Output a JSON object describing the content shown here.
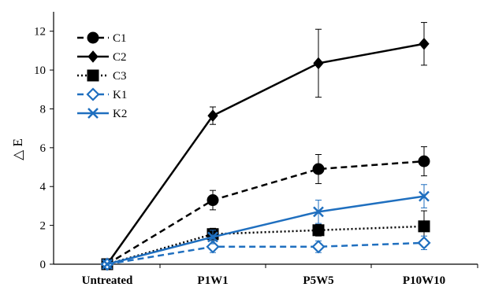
{
  "chart_data": {
    "type": "line",
    "title": "",
    "xlabel": "",
    "ylabel": "△ E",
    "categories": [
      "Untreated",
      "P1W1",
      "P5W5",
      "P10W10"
    ],
    "ylim": [
      0,
      13
    ],
    "yticks": [
      0,
      2,
      4,
      6,
      8,
      10,
      12
    ],
    "grid": false,
    "legend": "top-left",
    "series": [
      {
        "name": "C1",
        "color": "#000000",
        "dash": "dashed",
        "marker": "circle-filled",
        "values": [
          0,
          3.3,
          4.9,
          5.3
        ],
        "errors": [
          0,
          0.5,
          0.75,
          0.75
        ]
      },
      {
        "name": "C2",
        "color": "#000000",
        "dash": "solid",
        "marker": "diamond-filled",
        "values": [
          0,
          7.65,
          10.35,
          11.35
        ],
        "errors": [
          0,
          0.45,
          1.75,
          1.1
        ]
      },
      {
        "name": "C3",
        "color": "#000000",
        "dash": "dotted",
        "marker": "square-filled",
        "values": [
          0,
          1.55,
          1.75,
          1.95
        ],
        "errors": [
          0,
          0.3,
          0.3,
          0.8
        ]
      },
      {
        "name": "K1",
        "color": "#1f6fbf",
        "dash": "dashed",
        "marker": "diamond-open",
        "values": [
          0,
          0.9,
          0.9,
          1.1
        ],
        "errors": [
          0,
          0.3,
          0.3,
          0.35
        ]
      },
      {
        "name": "K2",
        "color": "#1f6fbf",
        "dash": "solid",
        "marker": "x",
        "values": [
          0,
          1.4,
          2.7,
          3.5
        ],
        "errors": [
          0,
          0.35,
          0.6,
          0.6
        ]
      }
    ]
  }
}
